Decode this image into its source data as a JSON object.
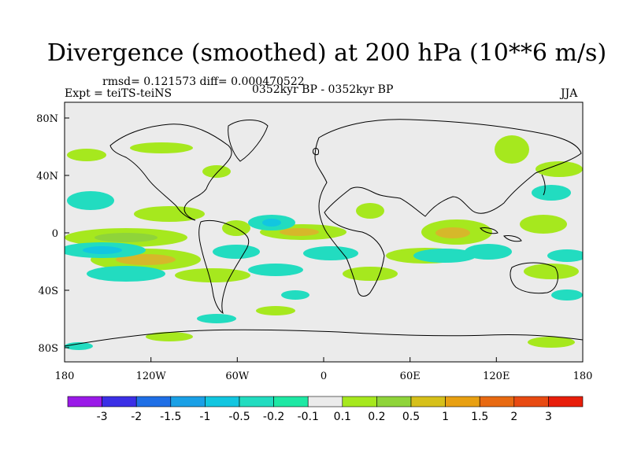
{
  "title": "Divergence (smoothed) at 200 hPa (10**6 m/s)",
  "stats": "rmsd= 0.121573 diff= 0.000470522",
  "experiment": "Expt = teiTS-teiNS",
  "period": "0352kyr BP - 0352kyr BP",
  "season": "JJA",
  "axes": {
    "x_ticks": [
      "180",
      "120W",
      "60W",
      "0",
      "60E",
      "120E",
      "180"
    ],
    "y_ticks": [
      "80N",
      "40N",
      "0",
      "40S",
      "80S"
    ]
  },
  "colorbar": {
    "labels": [
      "-3",
      "-2",
      "-1.5",
      "-1",
      "-0.5",
      "-0.2",
      "-0.1",
      "0.1",
      "0.2",
      "0.5",
      "1",
      "1.5",
      "2",
      "3"
    ],
    "colors": [
      "#9a1ae8",
      "#3b2fe6",
      "#1f6fe6",
      "#1aa0e6",
      "#12c6e0",
      "#22dcc0",
      "#1ee8a4",
      "#ebebeb",
      "#a6e81e",
      "#8fd43a",
      "#d6c01a",
      "#e8a012",
      "#e86a12",
      "#e84a12",
      "#e81e0a"
    ]
  },
  "field_colors": {
    "land": "#ebebeb",
    "pos_light": "#a6e81e",
    "pos_mid": "#8fd43a",
    "pos_strong": "#d6b82a",
    "neg_light": "#22dcc0",
    "neg_mid": "#12c6e0",
    "neg_strong": "#1aa0e6"
  }
}
